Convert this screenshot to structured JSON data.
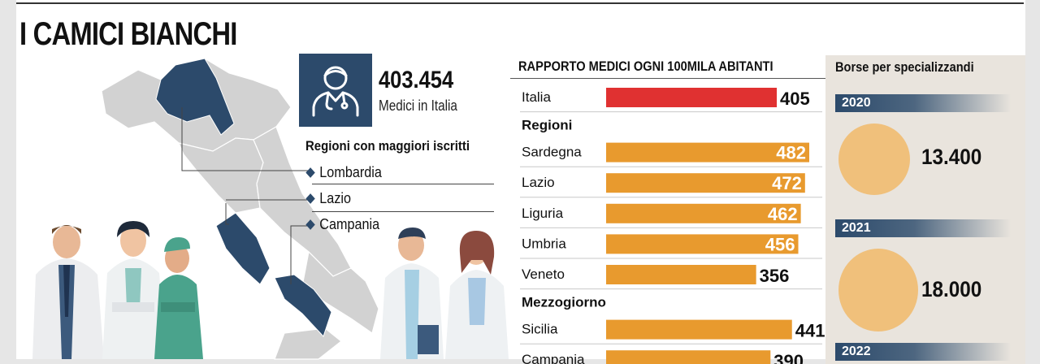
{
  "title": "I CAMICI BIANCHI",
  "doctors_stat": {
    "value": "403.454",
    "label": "Medici in Italia",
    "icon": "doctor-icon"
  },
  "top_regions": {
    "title": "Regioni con maggiori iscritti",
    "items": [
      "Lombardia",
      "Lazio",
      "Campania"
    ]
  },
  "colors": {
    "navy": "#2c4a6b",
    "national_bar": "#e03131",
    "regional_bar": "#e89a2e",
    "coin": "#f0c07b",
    "panel": "#e9e4dd"
  },
  "chart_data": [
    {
      "type": "bar",
      "orientation": "horizontal",
      "title": "RAPPORTO MEDICI OGNI 100MILA ABITANTI",
      "groups": [
        {
          "name": "",
          "categories": [
            "Italia"
          ],
          "values": [
            405
          ]
        },
        {
          "name": "Regioni",
          "categories": [
            "Sardegna",
            "Lazio",
            "Liguria",
            "Umbria",
            "Veneto"
          ],
          "values": [
            482,
            472,
            462,
            456,
            356
          ]
        },
        {
          "name": "Mezzogiorno",
          "categories": [
            "Sicilia",
            "Campania"
          ],
          "values": [
            441,
            390
          ]
        }
      ]
    },
    {
      "type": "table",
      "title": "Borse per specializzandi",
      "rows": [
        {
          "year": "2020",
          "value": "13.400"
        },
        {
          "year": "2021",
          "value": "18.000"
        },
        {
          "year": "2022",
          "value": ""
        }
      ]
    }
  ]
}
